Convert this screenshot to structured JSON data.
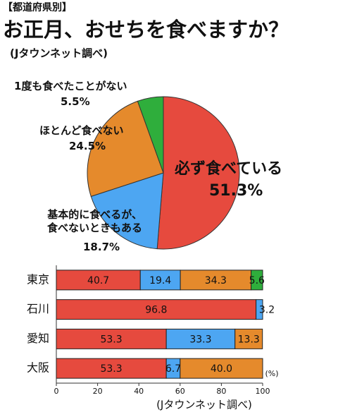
{
  "chart_data": [
    {
      "type": "pie",
      "kicker": "【都道府県別】",
      "title": "お正月、おせちを食べますか？",
      "subtitle": "(Jタウンネット調べ)",
      "categories": [
        "必ず食べている",
        "基本的に食べるが、食べないときもある",
        "ほとんど食べない",
        "1度も食べたことがない"
      ],
      "values": [
        51.3,
        18.7,
        24.5,
        5.5
      ],
      "value_labels": [
        "51.3%",
        "18.7%",
        "24.5%",
        "5.5%"
      ],
      "colors": [
        "#e64a3e",
        "#4da6f2",
        "#e58a2c",
        "#2fae3c"
      ]
    },
    {
      "type": "stacked-barh",
      "categories": [
        "東京",
        "石川",
        "愛知",
        "大阪"
      ],
      "series": [
        {
          "color": "#e64a3e",
          "values": [
            40.7,
            96.8,
            53.3,
            53.3
          ]
        },
        {
          "color": "#4da6f2",
          "values": [
            19.4,
            3.2,
            33.3,
            6.7
          ]
        },
        {
          "color": "#e58a2c",
          "values": [
            34.3,
            null,
            13.3,
            40.0
          ],
          "value_labels": [
            "34.3",
            null,
            "13.3",
            "40.0"
          ]
        },
        {
          "color": "#2fae3c",
          "values": [
            5.6,
            null,
            null,
            null
          ]
        }
      ],
      "xlim": [
        0,
        100
      ],
      "xticks": [
        0,
        20,
        40,
        60,
        80,
        100
      ],
      "xlabel": "(%)",
      "source": "(Jタウンネット調べ)"
    }
  ]
}
